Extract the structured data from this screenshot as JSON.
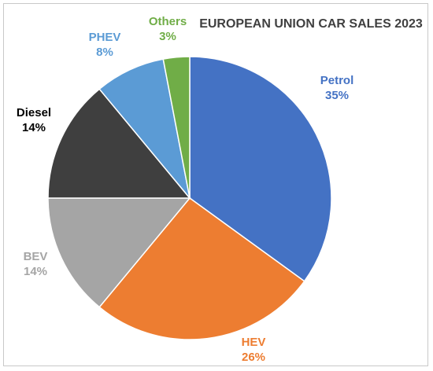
{
  "chart_data": {
    "type": "pie",
    "title": "EUROPEAN UNION CAR SALES 2023",
    "slices": [
      {
        "label": "Petrol",
        "value": 35,
        "display": "35%",
        "color": "#4472C4",
        "label_color": "#4472C4"
      },
      {
        "label": "HEV",
        "value": 26,
        "display": "26%",
        "color": "#ED7D31",
        "label_color": "#ED7D31"
      },
      {
        "label": "BEV",
        "value": 14,
        "display": "14%",
        "color": "#A5A5A5",
        "label_color": "#A5A5A5"
      },
      {
        "label": "Diesel",
        "value": 14,
        "display": "14%",
        "color": "#3F3F3F",
        "label_color": "#000000"
      },
      {
        "label": "PHEV",
        "value": 8,
        "display": "8%",
        "color": "#5B9BD5",
        "label_color": "#5B9BD5"
      },
      {
        "label": "Others",
        "value": 3,
        "display": "3%",
        "color": "#70AD47",
        "label_color": "#70AD47"
      }
    ],
    "start_angle": "12 o'clock",
    "direction": "clockwise"
  }
}
